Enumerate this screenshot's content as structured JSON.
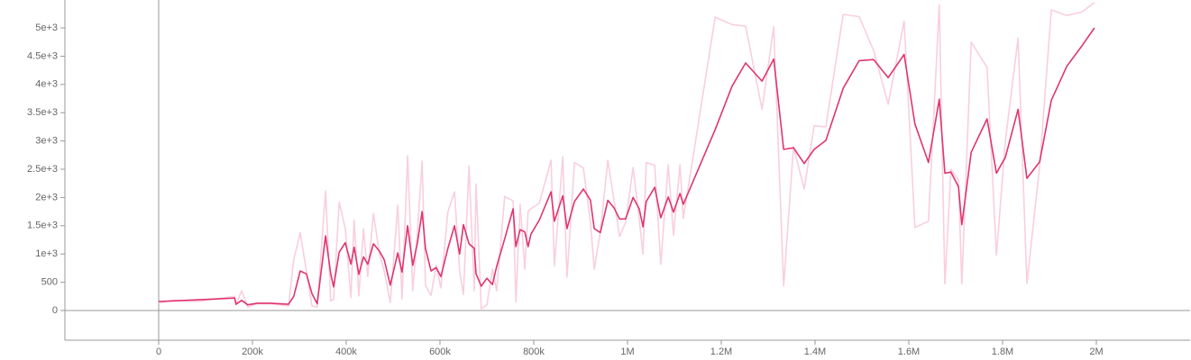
{
  "chart_data": {
    "type": "line",
    "x": [
      0,
      27000,
      85000,
      162000,
      165000,
      177000,
      190000,
      210000,
      238000,
      277000,
      288000,
      302000,
      315000,
      327000,
      338000,
      356000,
      367000,
      373000,
      385000,
      398000,
      410000,
      417000,
      427000,
      437000,
      446000,
      458000,
      471000,
      481000,
      494000,
      510000,
      519000,
      531000,
      542000,
      552000,
      562000,
      569000,
      581000,
      592000,
      602000,
      617000,
      631000,
      642000,
      650000,
      662000,
      673000,
      677000,
      688000,
      700000,
      712000,
      721000,
      738000,
      756000,
      762000,
      771000,
      781000,
      788000,
      794000,
      812000,
      837000,
      844000,
      862000,
      871000,
      887000,
      906000,
      921000,
      929000,
      942000,
      958000,
      971000,
      983000,
      996000,
      1012000,
      1025000,
      1033000,
      1040000,
      1058000,
      1071000,
      1087000,
      1098000,
      1112000,
      1119000,
      1187000,
      1223000,
      1252000,
      1287000,
      1312000,
      1333000,
      1354000,
      1377000,
      1398000,
      1423000,
      1460000,
      1494000,
      1525000,
      1556000,
      1590000,
      1613000,
      1642000,
      1665000,
      1677000,
      1690000,
      1706000,
      1713000,
      1733000,
      1767000,
      1787000,
      1806000,
      1833000,
      1852000,
      1879000,
      1904000,
      1937000,
      1969000,
      1996000
    ],
    "series": [
      {
        "color": "#f9cfdd",
        "values": [
          130,
          180,
          160,
          250,
          100,
          350,
          60,
          120,
          120,
          80,
          900,
          1380,
          700,
          80,
          60,
          2120,
          170,
          200,
          1920,
          1450,
          230,
          1600,
          260,
          1450,
          600,
          1720,
          1000,
          700,
          140,
          1860,
          200,
          2740,
          350,
          1400,
          2640,
          450,
          270,
          800,
          400,
          1750,
          2100,
          700,
          280,
          2560,
          350,
          2240,
          30,
          100,
          730,
          350,
          2020,
          1940,
          150,
          1880,
          730,
          1750,
          1800,
          1900,
          2660,
          790,
          2720,
          590,
          2620,
          2520,
          1560,
          730,
          1380,
          2660,
          1970,
          1310,
          1560,
          2530,
          1610,
          1000,
          2620,
          2570,
          820,
          2580,
          1330,
          2580,
          1630,
          5190,
          5060,
          5030,
          3560,
          5020,
          430,
          2900,
          2150,
          3270,
          3250,
          5240,
          5200,
          4600,
          3650,
          5120,
          1470,
          1580,
          5410,
          470,
          2500,
          2300,
          470,
          4750,
          4300,
          980,
          3000,
          4820,
          480,
          2550,
          5320,
          5220,
          5280,
          5450
        ]
      },
      {
        "color": "#e0356f",
        "values": [
          160,
          170,
          190,
          220,
          110,
          180,
          100,
          130,
          130,
          110,
          250,
          700,
          650,
          300,
          120,
          1320,
          650,
          420,
          1030,
          1200,
          820,
          1120,
          640,
          950,
          820,
          1180,
          1050,
          900,
          450,
          1020,
          680,
          1500,
          800,
          1200,
          1750,
          1100,
          700,
          760,
          600,
          1100,
          1500,
          1000,
          1520,
          1180,
          1100,
          650,
          430,
          570,
          460,
          780,
          1270,
          1800,
          1130,
          1430,
          1390,
          1130,
          1350,
          1600,
          2100,
          1580,
          2030,
          1450,
          1930,
          2150,
          1950,
          1450,
          1380,
          1950,
          1820,
          1620,
          1620,
          2000,
          1800,
          1480,
          1930,
          2180,
          1640,
          2010,
          1740,
          2070,
          1880,
          3200,
          3970,
          4380,
          4060,
          4450,
          2850,
          2880,
          2600,
          2850,
          3010,
          3930,
          4420,
          4440,
          4120,
          4530,
          3300,
          2620,
          3740,
          2430,
          2450,
          2190,
          1520,
          2800,
          3390,
          2430,
          2710,
          3560,
          2340,
          2630,
          3720,
          4320,
          4680,
          5000
        ]
      }
    ],
    "xlim": [
      -200000,
      2200000
    ],
    "xticks": [
      0,
      {
        "value": 200000,
        "label": "200k"
      },
      {
        "value": 400000,
        "label": "400k"
      },
      {
        "value": 600000,
        "label": "600k"
      },
      {
        "value": 800000,
        "label": "800k"
      },
      {
        "value": 1000000,
        "label": "1M"
      },
      {
        "value": 1200000,
        "label": "1.2M"
      },
      {
        "value": 1400000,
        "label": "1.4M"
      },
      {
        "value": 1600000,
        "label": "1.6M"
      },
      {
        "value": 1800000,
        "label": "1.8M"
      },
      {
        "value": 2000000,
        "label": "2M"
      }
    ],
    "ylim": [
      -525,
      5494
    ],
    "yticks": [
      0,
      500,
      {
        "value": 1000,
        "label": "1e+3"
      },
      {
        "value": 1500,
        "label": "1.5e+3"
      },
      {
        "value": 2000,
        "label": "2e+3"
      },
      {
        "value": 2500,
        "label": "2.5e+3"
      },
      {
        "value": 3000,
        "label": "3e+3"
      },
      {
        "value": 3500,
        "label": "3.5e+3"
      },
      {
        "value": 4000,
        "label": "4e+3"
      },
      {
        "value": 4500,
        "label": "4.5e+3"
      },
      {
        "value": 5000,
        "label": "5e+3"
      }
    ]
  }
}
